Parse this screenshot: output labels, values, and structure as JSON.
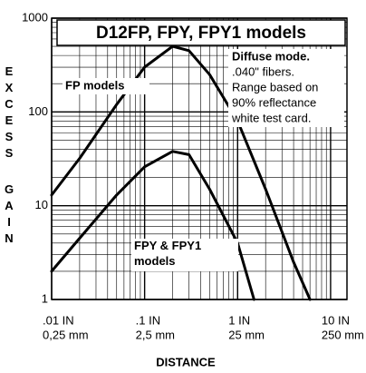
{
  "chart_data": {
    "type": "line",
    "title": "D12FP, FPY, FPY1 models",
    "xlabel": "DISTANCE",
    "ylabel": "EXCESS GAIN",
    "annotation": [
      "Diffuse mode.",
      ".040\" fibers.",
      "Range based on",
      "90% reflectance",
      "white test card."
    ],
    "log_x": true,
    "log_y": true,
    "grid": true,
    "minor_grid": true,
    "xlim": [
      0.01,
      15
    ],
    "ylim": [
      1,
      1000
    ],
    "xticks": [
      {
        "value": 0.01,
        "label": ".01 IN"
      },
      {
        "value": 0.1,
        "label": ".1 IN"
      },
      {
        "value": 1,
        "label": "1 IN"
      },
      {
        "value": 10,
        "label": "10 IN"
      }
    ],
    "xtick_sublabels": [
      "0,25 mm",
      "2,5 mm",
      "25 mm",
      "250 mm"
    ],
    "yticks": [
      1,
      10,
      100,
      1000
    ],
    "series": [
      {
        "name": "FP models",
        "color": "#000000",
        "x": [
          0.01,
          0.02,
          0.05,
          0.1,
          0.2,
          0.3,
          0.5,
          1,
          2,
          4,
          6
        ],
        "values": [
          13,
          32,
          120,
          300,
          500,
          450,
          250,
          80,
          15,
          2.5,
          1
        ]
      },
      {
        "name": "FPY & FPY1 models",
        "color": "#000000",
        "x": [
          0.01,
          0.02,
          0.05,
          0.1,
          0.2,
          0.3,
          0.5,
          1,
          1.5
        ],
        "values": [
          2,
          4.5,
          13,
          26,
          38,
          35,
          15,
          4,
          1
        ]
      }
    ]
  }
}
